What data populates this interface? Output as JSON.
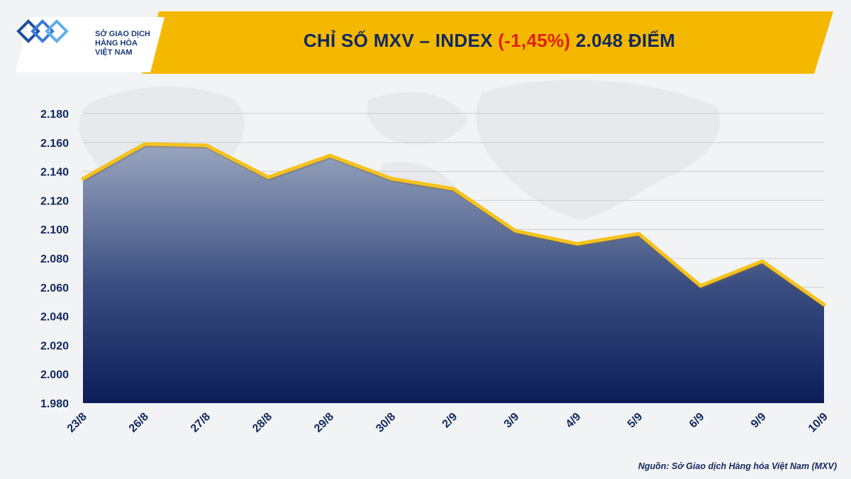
{
  "header": {
    "title_prefix": "CHỈ SỐ MXV – INDEX ",
    "title_change": "(-1,45%)",
    "title_suffix": " 2.048 ĐIỂM"
  },
  "logo": {
    "line1": "SỞ GIAO DỊCH",
    "line2": "HÀNG HÓA",
    "line3": "VIỆT NAM"
  },
  "colors": {
    "banner": "#f5b800",
    "line": "#f6c21c",
    "area_top": "#9aa6bf",
    "area_bottom": "#0c1d57",
    "title": "#10295e",
    "change": "#e0201b"
  },
  "chart_data": {
    "type": "area",
    "title": "CHỈ SỐ MXV – INDEX (-1,45%) 2.048 ĐIỂM",
    "categories": [
      "23/8",
      "26/8",
      "27/8",
      "28/8",
      "29/8",
      "30/8",
      "2/9",
      "3/9",
      "4/9",
      "5/9",
      "6/9",
      "9/9",
      "10/9"
    ],
    "values": [
      2135,
      2159,
      2158,
      2136,
      2151,
      2135,
      2128,
      2099,
      2090,
      2097,
      2061,
      2078,
      2048
    ],
    "y_ticks": [
      1980,
      2000,
      2020,
      2040,
      2060,
      2080,
      2100,
      2120,
      2140,
      2160,
      2180
    ],
    "y_tick_labels": [
      "1.980",
      "2.000",
      "2.020",
      "2.040",
      "2.060",
      "2.080",
      "2.100",
      "2.120",
      "2.140",
      "2.160",
      "2.180"
    ],
    "ylim": [
      1980,
      2180
    ],
    "grid": true,
    "xlabel": "",
    "ylabel": ""
  },
  "footer": {
    "source": "Nguồn: Sở Giao dịch Hàng hóa Việt Nam (MXV)"
  }
}
